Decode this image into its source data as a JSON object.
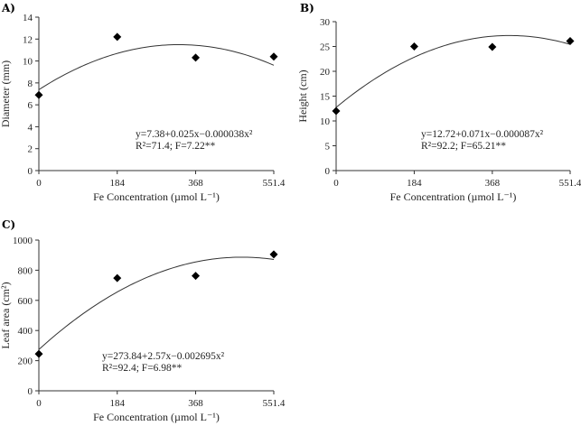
{
  "chart_data": [
    {
      "type": "scatter",
      "panel": "A)",
      "xlabel": "Fe Concentration (µmol L⁻¹)",
      "ylabel": "Diameter (mm)",
      "x_ticks": [
        "0",
        "184",
        "368",
        "551.4"
      ],
      "y_ticks": [
        "0",
        "2",
        "4",
        "6",
        "8",
        "10",
        "12",
        "14"
      ],
      "xlim": [
        0,
        551.4
      ],
      "ylim": [
        0,
        14
      ],
      "points": [
        {
          "x": 0,
          "y": 6.9
        },
        {
          "x": 184,
          "y": 12.2
        },
        {
          "x": 368,
          "y": 10.3
        },
        {
          "x": 551.4,
          "y": 10.4
        }
      ],
      "fit": {
        "a": 7.38,
        "b": 0.025,
        "c": -3.8e-05
      },
      "equation": "y=7.38+0.025x−0.000038x²",
      "stats": "R²=71.4; F=7.22**"
    },
    {
      "type": "scatter",
      "panel": "B)",
      "xlabel": "Fe Concentration (µmol L⁻¹)",
      "ylabel": "Height (cm)",
      "x_ticks": [
        "0",
        "184",
        "368",
        "551.4"
      ],
      "y_ticks": [
        "0",
        "5",
        "10",
        "15",
        "20",
        "25",
        "30"
      ],
      "xlim": [
        0,
        551.4
      ],
      "ylim": [
        0,
        30
      ],
      "points": [
        {
          "x": 0,
          "y": 12.0
        },
        {
          "x": 184,
          "y": 25.0
        },
        {
          "x": 368,
          "y": 24.9
        },
        {
          "x": 551.4,
          "y": 26.1
        }
      ],
      "fit": {
        "a": 12.72,
        "b": 0.071,
        "c": -8.7e-05
      },
      "equation": "y=12.72+0.071x−0.000087x²",
      "stats": "R²=92.2; F=65.21**"
    },
    {
      "type": "scatter",
      "panel": "C)",
      "xlabel": "Fe Concentration (µmol L⁻¹)",
      "ylabel": "Leaf area (cm²)",
      "x_ticks": [
        "0",
        "184",
        "368",
        "551.4"
      ],
      "y_ticks": [
        "0",
        "200",
        "400",
        "600",
        "800",
        "1000"
      ],
      "xlim": [
        0,
        551.4
      ],
      "ylim": [
        0,
        1000
      ],
      "points": [
        {
          "x": 0,
          "y": 245
        },
        {
          "x": 184,
          "y": 748
        },
        {
          "x": 368,
          "y": 763
        },
        {
          "x": 551.4,
          "y": 905
        }
      ],
      "fit": {
        "a": 273.84,
        "b": 2.57,
        "c": -0.002695
      },
      "equation": "y=273.84+2.57x−0.002695x²",
      "stats": "R²=92.4; F=6.98**"
    }
  ]
}
